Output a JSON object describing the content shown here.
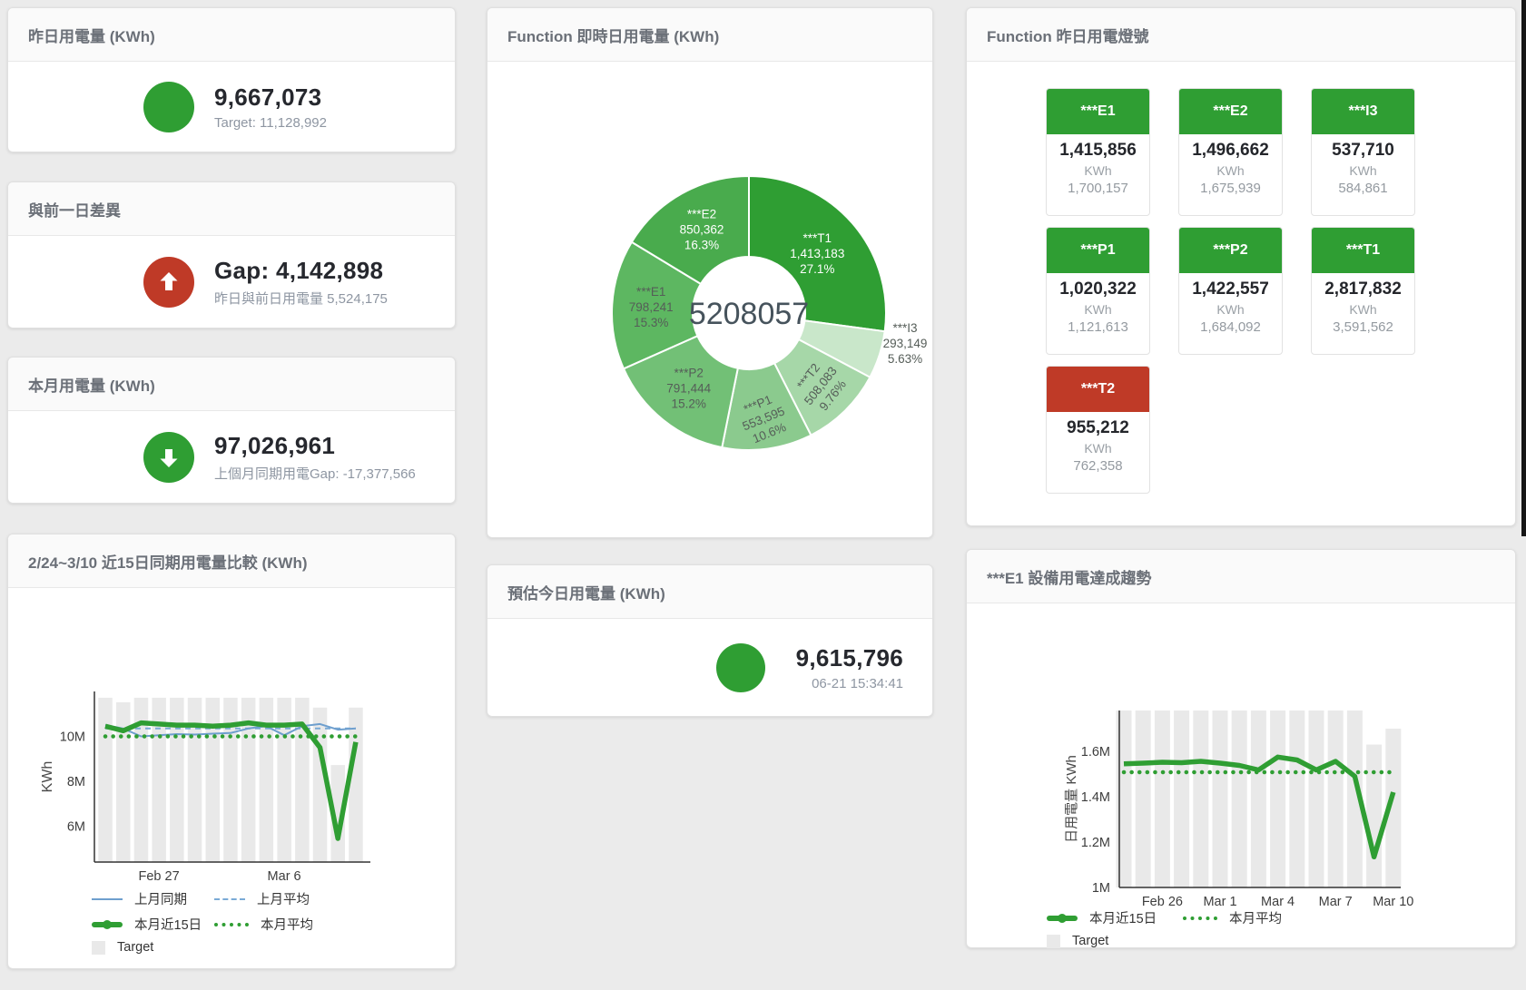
{
  "colors": {
    "green": "#2f9e33",
    "red": "#bf3a27",
    "blue": "#6e9fce",
    "blue_dash": "#7aaad6",
    "bar": "#e9e9e9"
  },
  "cards": {
    "yesterday": {
      "title": "昨日用電量 (KWh)",
      "value": "9,667,073",
      "subtitle": "Target: 11,128,992"
    },
    "day_gap": {
      "title": "與前一日差異",
      "value": "Gap: 4,142,898",
      "subtitle": "昨日與前日用電量 5,524,175"
    },
    "month": {
      "title": "本月用電量 (KWh)",
      "value": "97,026,961",
      "subtitle": "上個月同期用電Gap: -17,377,566"
    },
    "estimate": {
      "title": "預估今日用電量 (KWh)",
      "value": "9,615,796",
      "subtitle": "06-21 15:34:41"
    },
    "donut": {
      "title": "Function 即時日用電量 (KWh)"
    },
    "lights": {
      "title": "Function 昨日用電燈號"
    },
    "compare": {
      "title": "2/24~3/10 近15日同期用電量比較 (KWh)"
    },
    "trend": {
      "title": "***E1 設備用電達成趨勢"
    }
  },
  "lights_tiles": [
    {
      "name": "***E1",
      "value": "1,415,856",
      "unit": "KWh",
      "target": "1,700,157",
      "color": "#2f9e33"
    },
    {
      "name": "***E2",
      "value": "1,496,662",
      "unit": "KWh",
      "target": "1,675,939",
      "color": "#2f9e33"
    },
    {
      "name": "***I3",
      "value": "537,710",
      "unit": "KWh",
      "target": "584,861",
      "color": "#2f9e33"
    },
    {
      "name": "***P1",
      "value": "1,020,322",
      "unit": "KWh",
      "target": "1,121,613",
      "color": "#2f9e33"
    },
    {
      "name": "***P2",
      "value": "1,422,557",
      "unit": "KWh",
      "target": "1,684,092",
      "color": "#2f9e33"
    },
    {
      "name": "***T1",
      "value": "2,817,832",
      "unit": "KWh",
      "target": "3,591,562",
      "color": "#2f9e33"
    },
    {
      "name": "***T2",
      "value": "955,212",
      "unit": "KWh",
      "target": "762,358",
      "color": "#bf3a27"
    }
  ],
  "chart_data": [
    {
      "id": "donut",
      "type": "pie",
      "title": "Function 即時日用電量 (KWh)",
      "center_total": "5208057",
      "slices": [
        {
          "label": "***T1",
          "value": 1413183,
          "value_label": "1,413,183",
          "pct": "27.1%",
          "color": "#2f9e33",
          "text_color": "#ffffff",
          "label_r": 100,
          "rot": 0
        },
        {
          "label": "***I3",
          "value": 293149,
          "value_label": "293,149",
          "pct": "5.63%",
          "color": "#c9e7ca",
          "text_color": "#555d58",
          "outside": {
            "dx": 172,
            "dy": 33
          }
        },
        {
          "label": "***T2",
          "value": 508083,
          "value_label": "508,083",
          "pct": "9.76%",
          "color": "#a6d7a8",
          "text_color": "#555d58",
          "label_r": 112,
          "rot": -52
        },
        {
          "label": "***P1",
          "value": 553595,
          "value_label": "553,595",
          "pct": "10.6%",
          "color": "#8bca8e",
          "text_color": "#555d58",
          "label_r": 117,
          "rot": -22
        },
        {
          "label": "***P2",
          "value": 791444,
          "value_label": "791,444",
          "pct": "15.2%",
          "color": "#72c076",
          "text_color": "#555d58",
          "label_r": 106,
          "rot": 0
        },
        {
          "label": "***E1",
          "value": 798241,
          "value_label": "798,241",
          "pct": "15.3%",
          "color": "#5db761",
          "text_color": "#555d58",
          "label_r": 108,
          "rot": 0
        },
        {
          "label": "***E2",
          "value": 850362,
          "value_label": "850,362",
          "pct": "16.3%",
          "color": "#49ab4d",
          "text_color": "#ffffff",
          "label_r": 106,
          "rot": 0
        }
      ]
    },
    {
      "id": "compare",
      "type": "line",
      "title": "2/24~3/10 近15日同期用電量比較 (KWh)",
      "ylabel": "KWh",
      "unit": "M",
      "n": 15,
      "ylim": [
        4.4,
        12.0
      ],
      "y_ticks": [
        {
          "v": 10,
          "label": "10M"
        },
        {
          "v": 8,
          "label": "8M"
        },
        {
          "v": 6,
          "label": "6M"
        }
      ],
      "x_ticks": [
        {
          "i": 3,
          "label": "Feb 27"
        },
        {
          "i": 10,
          "label": "Mar 6"
        }
      ],
      "target_bars": [
        11.72,
        11.52,
        11.72,
        11.72,
        11.72,
        11.72,
        11.72,
        11.72,
        11.72,
        11.72,
        11.72,
        11.72,
        11.28,
        8.72,
        11.28
      ],
      "series": [
        {
          "name": "上月同期",
          "style": "line",
          "color": "#6e9fce",
          "values": [
            10.5,
            10.35,
            10.0,
            10.05,
            10.1,
            10.08,
            10.12,
            10.15,
            10.35,
            10.45,
            10.05,
            10.45,
            10.55,
            10.3,
            10.35
          ]
        },
        {
          "name": "上月平均",
          "style": "dash",
          "color": "#7aaad6",
          "const": 10.35
        },
        {
          "name": "本月近15日",
          "style": "thick",
          "color": "#2f9e33",
          "values": [
            10.45,
            10.25,
            10.6,
            10.55,
            10.5,
            10.5,
            10.45,
            10.5,
            10.6,
            10.5,
            10.5,
            10.55,
            9.5,
            5.45,
            9.75
          ]
        },
        {
          "name": "本月平均",
          "style": "dots",
          "color": "#2f9e33",
          "const": 10.0
        }
      ],
      "legend_rows": [
        [
          {
            "swatch": "line",
            "color": "#6e9fce",
            "label": "上月同期"
          },
          {
            "swatch": "dash",
            "color": "#7aaad6",
            "label": "上月平均"
          }
        ],
        [
          {
            "swatch": "thick",
            "color": "#2f9e33",
            "label": "本月近15日"
          },
          {
            "swatch": "dots",
            "color": "#2f9e33",
            "label": "本月平均"
          }
        ],
        [
          {
            "swatch": "square",
            "color": "#e9e9e9",
            "label": "Target"
          }
        ]
      ]
    },
    {
      "id": "trend",
      "type": "line",
      "title": "***E1 設備用電達成趨勢",
      "ylabel": "日用電量 KWh",
      "unit": "M",
      "n": 15,
      "ylim": [
        1.0,
        1.78
      ],
      "y_ticks": [
        {
          "v": 1.6,
          "label": "1.6M"
        },
        {
          "v": 1.4,
          "label": "1.4M"
        },
        {
          "v": 1.2,
          "label": "1.2M"
        },
        {
          "v": 1.0,
          "label": "1M"
        }
      ],
      "x_ticks": [
        {
          "i": 2,
          "label": "Feb 26"
        },
        {
          "i": 5,
          "label": "Mar 1"
        },
        {
          "i": 8,
          "label": "Mar 4"
        },
        {
          "i": 11,
          "label": "Mar 7"
        },
        {
          "i": 14,
          "label": "Mar 10"
        }
      ],
      "target_bars": [
        1.78,
        1.78,
        1.78,
        1.78,
        1.78,
        1.78,
        1.78,
        1.78,
        1.78,
        1.78,
        1.78,
        1.78,
        1.78,
        1.63,
        1.7
      ],
      "series": [
        {
          "name": "本月近15日",
          "style": "thick",
          "color": "#2f9e33",
          "values": [
            1.545,
            1.548,
            1.552,
            1.55,
            1.556,
            1.548,
            1.538,
            1.518,
            1.575,
            1.562,
            1.518,
            1.556,
            1.49,
            1.135,
            1.42
          ]
        },
        {
          "name": "本月平均",
          "style": "dots",
          "color": "#2f9e33",
          "const": 1.508
        }
      ],
      "legend_rows": [
        [
          {
            "swatch": "thick",
            "color": "#2f9e33",
            "label": "本月近15日"
          },
          {
            "swatch": "dots",
            "color": "#2f9e33",
            "label": "本月平均"
          }
        ],
        [
          {
            "swatch": "square",
            "color": "#e9e9e9",
            "label": "Target"
          }
        ]
      ]
    }
  ]
}
